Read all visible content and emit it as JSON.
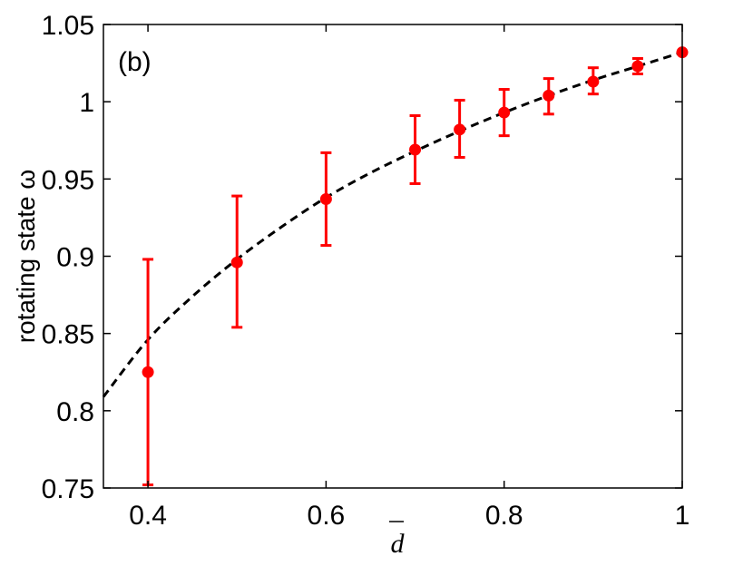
{
  "chart_data": {
    "type": "scatter",
    "panel_label": "(b)",
    "xlabel": "d",
    "xlabel_has_overbar": true,
    "ylabel": "rotating state ω",
    "xlim": [
      0.35,
      1.0
    ],
    "ylim": [
      0.75,
      1.05
    ],
    "x_ticks": [
      {
        "value": 0.4,
        "label": "0.4"
      },
      {
        "value": 0.6,
        "label": "0.6"
      },
      {
        "value": 0.8,
        "label": "0.8"
      },
      {
        "value": 1.0,
        "label": "1"
      }
    ],
    "y_ticks": [
      {
        "value": 0.75,
        "label": "0.75"
      },
      {
        "value": 0.8,
        "label": "0.8"
      },
      {
        "value": 0.85,
        "label": "0.85"
      },
      {
        "value": 0.9,
        "label": "0.9"
      },
      {
        "value": 0.95,
        "label": "0.95"
      },
      {
        "value": 1.0,
        "label": "1"
      },
      {
        "value": 1.05,
        "label": "1.05"
      }
    ],
    "grid": false,
    "series": [
      {
        "kind": "points_with_errorbars",
        "color": "#ff0000",
        "points": [
          {
            "x": 0.4,
            "y": 0.825,
            "ylow": 0.752,
            "yhigh": 0.898
          },
          {
            "x": 0.5,
            "y": 0.896,
            "ylow": 0.854,
            "yhigh": 0.939
          },
          {
            "x": 0.6,
            "y": 0.937,
            "ylow": 0.907,
            "yhigh": 0.967
          },
          {
            "x": 0.7,
            "y": 0.969,
            "ylow": 0.947,
            "yhigh": 0.991
          },
          {
            "x": 0.75,
            "y": 0.982,
            "ylow": 0.964,
            "yhigh": 1.001
          },
          {
            "x": 0.8,
            "y": 0.993,
            "ylow": 0.978,
            "yhigh": 1.008
          },
          {
            "x": 0.85,
            "y": 1.004,
            "ylow": 0.992,
            "yhigh": 1.015
          },
          {
            "x": 0.9,
            "y": 1.013,
            "ylow": 1.005,
            "yhigh": 1.022
          },
          {
            "x": 0.95,
            "y": 1.023,
            "ylow": 1.018,
            "yhigh": 1.028
          },
          {
            "x": 1.0,
            "y": 1.032,
            "ylow": 1.032,
            "yhigh": 1.032
          }
        ]
      },
      {
        "kind": "dashed_curve",
        "color": "#000000",
        "x": [
          0.35,
          0.4,
          0.45,
          0.5,
          0.55,
          0.6,
          0.65,
          0.7,
          0.75,
          0.8,
          0.85,
          0.9,
          0.95,
          1.0
        ],
        "y": [
          0.809,
          0.846,
          0.874,
          0.898,
          0.919,
          0.938,
          0.954,
          0.968,
          0.981,
          0.993,
          1.004,
          1.014,
          1.023,
          1.032
        ]
      }
    ]
  }
}
